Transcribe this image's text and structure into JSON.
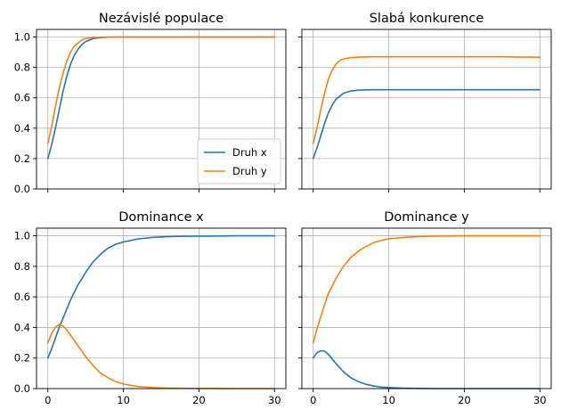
{
  "chart_data": [
    {
      "type": "line",
      "title": "Nezávislé populace",
      "xlim": [
        -1.5,
        31.5
      ],
      "ylim": [
        0.0,
        1.05
      ],
      "xticks": [
        0,
        10,
        20,
        30
      ],
      "yticks": [
        0.0,
        0.2,
        0.4,
        0.6,
        0.8,
        1.0
      ],
      "grid": true,
      "legend": "lower right",
      "series": [
        {
          "name": "Druh x",
          "color": "#1f77b4",
          "x": [
            0,
            0.5,
            1,
            1.5,
            2,
            2.5,
            3,
            3.5,
            4,
            4.5,
            5,
            6,
            7,
            8,
            10,
            15,
            20,
            25,
            30
          ],
          "y": [
            0.2,
            0.29,
            0.4,
            0.52,
            0.64,
            0.74,
            0.82,
            0.88,
            0.92,
            0.95,
            0.97,
            0.99,
            0.996,
            0.999,
            1.0,
            1.0,
            1.0,
            1.0,
            1.0
          ]
        },
        {
          "name": "Druh y",
          "color": "#ff7f0e",
          "x": [
            0,
            0.5,
            1,
            1.5,
            2,
            2.5,
            3,
            3.5,
            4,
            4.5,
            5,
            6,
            7,
            8,
            10,
            15,
            20,
            25,
            30
          ],
          "y": [
            0.3,
            0.41,
            0.54,
            0.66,
            0.76,
            0.84,
            0.9,
            0.94,
            0.96,
            0.98,
            0.99,
            0.997,
            0.999,
            1.0,
            1.0,
            1.0,
            1.0,
            1.0,
            1.0
          ]
        }
      ]
    },
    {
      "type": "line",
      "title": "Slabá konkurence",
      "xlim": [
        -1.5,
        31.5
      ],
      "ylim": [
        0.0,
        1.05
      ],
      "xticks": [
        0,
        10,
        20,
        30
      ],
      "yticks": [
        0.0,
        0.2,
        0.4,
        0.6,
        0.8,
        1.0
      ],
      "grid": true,
      "series": [
        {
          "color": "#1f77b4",
          "x": [
            0,
            0.5,
            1,
            1.5,
            2,
            2.5,
            3,
            3.5,
            4,
            5,
            6,
            7,
            8,
            10,
            15,
            20,
            25,
            30
          ],
          "y": [
            0.2,
            0.27,
            0.35,
            0.43,
            0.5,
            0.55,
            0.59,
            0.61,
            0.63,
            0.645,
            0.65,
            0.652,
            0.653,
            0.653,
            0.653,
            0.653,
            0.653,
            0.653
          ]
        },
        {
          "color": "#ff7f0e",
          "x": [
            0,
            0.5,
            1,
            1.5,
            2,
            2.5,
            3,
            3.5,
            4,
            5,
            6,
            7,
            8,
            10,
            15,
            20,
            25,
            30
          ],
          "y": [
            0.3,
            0.4,
            0.52,
            0.63,
            0.72,
            0.78,
            0.82,
            0.845,
            0.855,
            0.865,
            0.868,
            0.869,
            0.87,
            0.87,
            0.87,
            0.87,
            0.87,
            0.867
          ]
        }
      ]
    },
    {
      "type": "line",
      "title": "Dominance x",
      "xlim": [
        -1.5,
        31.5
      ],
      "ylim": [
        0.0,
        1.05
      ],
      "xticks": [
        0,
        10,
        20,
        30
      ],
      "yticks": [
        0.0,
        0.2,
        0.4,
        0.6,
        0.8,
        1.0
      ],
      "grid": true,
      "series": [
        {
          "color": "#1f77b4",
          "x": [
            0,
            0.5,
            1,
            1.5,
            2,
            3,
            4,
            5,
            6,
            7,
            8,
            9,
            10,
            12,
            14,
            16,
            18,
            20,
            25,
            30
          ],
          "y": [
            0.2,
            0.26,
            0.33,
            0.4,
            0.46,
            0.58,
            0.68,
            0.76,
            0.83,
            0.88,
            0.92,
            0.945,
            0.96,
            0.98,
            0.99,
            0.995,
            0.997,
            0.998,
            1.0,
            1.0
          ]
        },
        {
          "color": "#ff7f0e",
          "x": [
            0,
            0.5,
            1,
            1.5,
            2,
            2.5,
            3,
            4,
            5,
            6,
            7,
            8,
            9,
            10,
            12,
            14,
            16,
            18,
            20,
            25,
            30
          ],
          "y": [
            0.3,
            0.36,
            0.4,
            0.42,
            0.41,
            0.385,
            0.35,
            0.28,
            0.21,
            0.15,
            0.1,
            0.07,
            0.045,
            0.03,
            0.013,
            0.006,
            0.003,
            0.002,
            0.001,
            0.0,
            0.0
          ]
        }
      ]
    },
    {
      "type": "line",
      "title": "Dominance y",
      "xlim": [
        -1.5,
        31.5
      ],
      "ylim": [
        0.0,
        1.05
      ],
      "xticks": [
        0,
        10,
        20,
        30
      ],
      "yticks": [
        0.0,
        0.2,
        0.4,
        0.6,
        0.8,
        1.0
      ],
      "grid": true,
      "series": [
        {
          "color": "#1f77b4",
          "x": [
            0,
            0.5,
            1,
            1.5,
            2,
            2.5,
            3,
            4,
            5,
            6,
            7,
            8,
            9,
            10,
            12,
            14,
            16,
            20,
            25,
            30
          ],
          "y": [
            0.2,
            0.235,
            0.248,
            0.245,
            0.225,
            0.195,
            0.165,
            0.11,
            0.07,
            0.045,
            0.028,
            0.017,
            0.01,
            0.007,
            0.003,
            0.001,
            0.0,
            0.0,
            0.0,
            0.0
          ]
        },
        {
          "color": "#ff7f0e",
          "x": [
            0,
            0.5,
            1,
            1.5,
            2,
            3,
            4,
            5,
            6,
            7,
            8,
            9,
            10,
            12,
            14,
            16,
            18,
            20,
            25,
            30
          ],
          "y": [
            0.3,
            0.39,
            0.47,
            0.55,
            0.62,
            0.72,
            0.8,
            0.86,
            0.9,
            0.93,
            0.955,
            0.97,
            0.98,
            0.99,
            0.995,
            0.998,
            0.999,
            1.0,
            1.0,
            1.0
          ]
        }
      ]
    }
  ]
}
